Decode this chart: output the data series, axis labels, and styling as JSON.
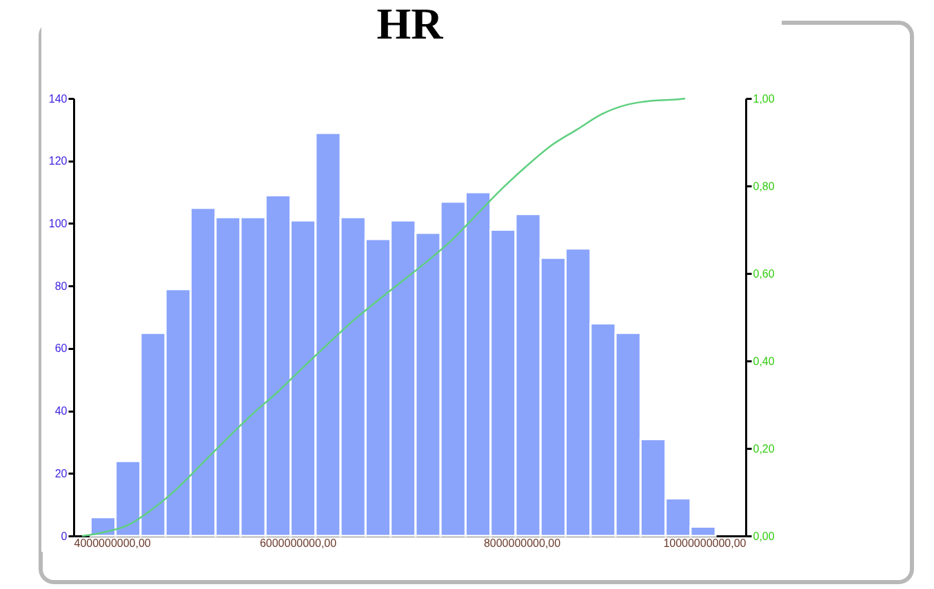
{
  "chart_data": {
    "type": "histogram",
    "title": "HR",
    "bins": [
      4150000000,
      4373200000,
      4596400000,
      4819600000,
      5042800000,
      5266000000,
      5489200000,
      5712400000,
      5935600000,
      6158800000,
      6382000000,
      6605200000,
      6828400000,
      7051600000,
      7274800000,
      7498000000,
      7721200000,
      7944400000,
      8167600000,
      8390800000,
      8614000000,
      8837200000,
      9060400000,
      9283600000,
      9506800000,
      9730000000
    ],
    "series": [
      {
        "color": "#8aa4fc",
        "values": [
          6,
          24,
          65,
          79,
          105,
          102,
          102,
          109,
          101,
          129,
          102,
          95,
          101,
          97,
          107,
          110,
          98,
          103,
          89,
          92,
          68,
          65,
          31,
          12,
          3
        ]
      },
      {
        "type": "line",
        "axis": "y2",
        "color": "#5fcf7f",
        "x": [
          4074000000,
          4258000000,
          4486000000,
          4695000000,
          4917000000,
          5163000000,
          5366000000,
          5588000000,
          5815000000,
          6037000000,
          6265000000,
          6486000000,
          6708000000,
          6935000000,
          7151000000,
          7378000000,
          7606000000,
          7828000000,
          8049000000,
          8271000000,
          8492000000,
          8720000000,
          8942000000,
          9163000000,
          9391000000,
          9458000000
        ],
        "values": [
          0,
          0.008,
          0.025,
          0.06,
          0.107,
          0.17,
          0.222,
          0.277,
          0.328,
          0.383,
          0.438,
          0.49,
          0.537,
          0.583,
          0.627,
          0.677,
          0.737,
          0.795,
          0.847,
          0.894,
          0.929,
          0.965,
          0.986,
          0.995,
          0.998,
          1.0
        ]
      }
    ],
    "xlim": [
      4000000000,
      10000000000
    ],
    "xticks": [
      {
        "value": 4000000000,
        "label": "4000000000,00"
      },
      {
        "value": 6000000000,
        "label": "6000000000,00"
      },
      {
        "value": 8000000000,
        "label": "8000000000,00"
      },
      {
        "value": 10000000000,
        "label": "10000000000,00"
      }
    ],
    "ylim": [
      0,
      140
    ],
    "yticks": [
      0,
      20,
      40,
      60,
      80,
      100,
      120,
      140
    ],
    "y2lim": [
      0,
      1
    ],
    "y2ticks": [
      {
        "value": 0,
        "label": "0,00"
      },
      {
        "value": 0.2,
        "label": "0,20"
      },
      {
        "value": 0.4,
        "label": "0,40"
      },
      {
        "value": 0.6,
        "label": "0,60"
      },
      {
        "value": 0.8,
        "label": "0,80"
      },
      {
        "value": 1,
        "label": "1,00"
      }
    ]
  }
}
